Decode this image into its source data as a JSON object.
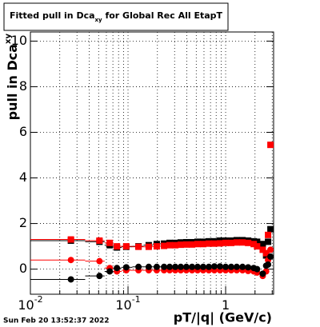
{
  "chart_data": {
    "type": "scatter",
    "title": "Fitted pull in Dca",
    "title_sub": "xy",
    "title_rest": " for Global Rec All EtapT",
    "x_label": "pT/|q| (GeV/c)",
    "y_label": "pull in Dca",
    "y_label_sub": "xy",
    "timestamp": "Sun Feb 20 13:52:37 2022",
    "x_log": true,
    "grid": true,
    "xlim": [
      0.01,
      3.1
    ],
    "ylim": [
      -1.1,
      10.4
    ],
    "xticks": [
      {
        "value": 0.01,
        "label": "10",
        "exp": "-2"
      },
      {
        "value": 0.1,
        "label": "10",
        "exp": "-1"
      },
      {
        "value": 1,
        "label": "1"
      }
    ],
    "xminor": [
      0.02,
      0.03,
      0.04,
      0.05,
      0.06,
      0.07,
      0.08,
      0.09,
      0.2,
      0.3,
      0.4,
      0.5,
      0.6,
      0.7,
      0.8,
      0.9,
      2,
      3
    ],
    "yticks": [
      0,
      2,
      4,
      6,
      8,
      10
    ],
    "x": [
      0.026,
      0.051,
      0.065,
      0.077,
      0.096,
      0.128,
      0.163,
      0.197,
      0.234,
      0.267,
      0.305,
      0.347,
      0.396,
      0.453,
      0.516,
      0.589,
      0.673,
      0.767,
      0.876,
      1.0,
      1.14,
      1.3,
      1.49,
      1.7,
      1.94,
      2.1,
      2.4,
      2.6,
      2.72,
      2.88
    ],
    "series": [
      {
        "marker": "square",
        "color": "#000000",
        "values": [
          1.25,
          1.2,
          1.05,
          0.95,
          0.98,
          1.0,
          1.05,
          1.1,
          1.12,
          1.15,
          1.15,
          1.17,
          1.18,
          1.18,
          1.2,
          1.2,
          1.22,
          1.22,
          1.25,
          1.25,
          1.25,
          1.27,
          1.27,
          1.25,
          1.22,
          1.2,
          1.1,
          0.6,
          1.2,
          1.75
        ]
      },
      {
        "marker": "square",
        "color": "#ff0000",
        "values": [
          1.3,
          1.25,
          1.15,
          1.0,
          1.0,
          0.98,
          0.98,
          1.0,
          1.02,
          1.05,
          1.05,
          1.07,
          1.08,
          1.08,
          1.1,
          1.1,
          1.12,
          1.12,
          1.13,
          1.15,
          1.15,
          1.17,
          1.17,
          1.15,
          1.1,
          1.0,
          0.85,
          0.7,
          1.5,
          5.45
        ]
      },
      {
        "marker": "circle",
        "color": "#ff0000",
        "values": [
          0.4,
          0.35,
          0.05,
          -0.1,
          -0.05,
          -0.05,
          -0.05,
          -0.05,
          -0.05,
          -0.05,
          -0.05,
          -0.05,
          -0.05,
          -0.05,
          -0.05,
          -0.05,
          -0.05,
          -0.05,
          -0.05,
          -0.05,
          -0.05,
          -0.05,
          -0.05,
          -0.08,
          -0.1,
          -0.15,
          -0.3,
          -0.1,
          0.4,
          0.85
        ]
      },
      {
        "marker": "circle",
        "color": "#000000",
        "values": [
          -0.45,
          -0.3,
          -0.1,
          0.05,
          0.08,
          0.1,
          0.1,
          0.1,
          0.1,
          0.1,
          0.1,
          0.1,
          0.1,
          0.1,
          0.1,
          0.1,
          0.1,
          0.12,
          0.12,
          0.1,
          0.1,
          0.1,
          0.1,
          0.08,
          0.05,
          0,
          -0.2,
          0.15,
          0.2,
          0.55
        ]
      }
    ]
  }
}
